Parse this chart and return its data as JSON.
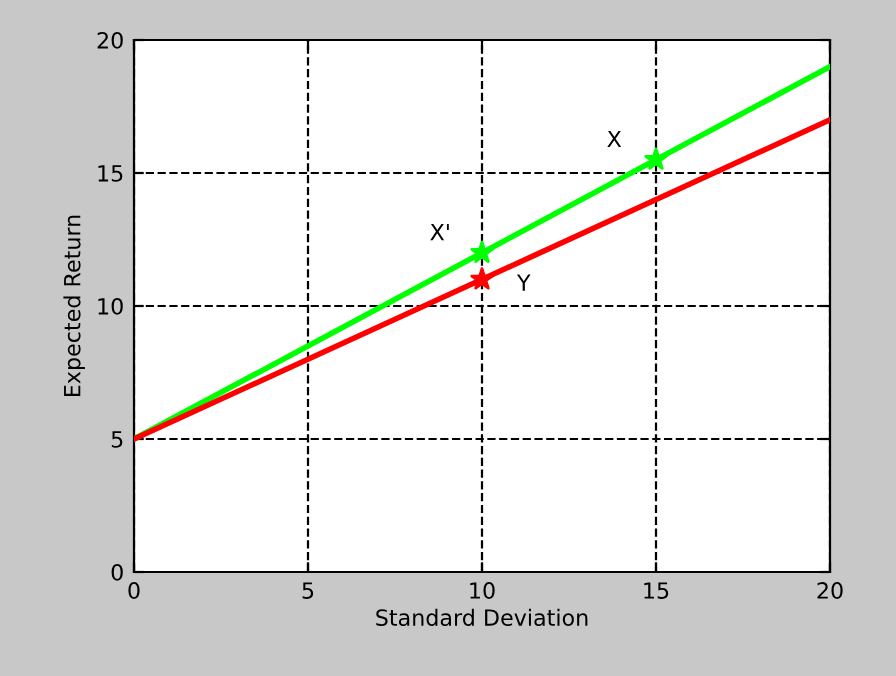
{
  "chart_data": {
    "type": "line",
    "xlabel": "Standard Deviation",
    "ylabel": "Expected Return",
    "series": [
      {
        "color": "#00ff00",
        "x": [
          0,
          20
        ],
        "values": [
          5,
          19
        ]
      },
      {
        "color": "#ff0000",
        "x": [
          0,
          20
        ],
        "values": [
          5,
          17
        ]
      },
      {
        "type": "scatter",
        "color": "#00ff00",
        "x": [
          10,
          15
        ],
        "values": [
          12,
          15.5
        ],
        "marker": "star"
      },
      {
        "type": "scatter",
        "color": "#ff0000",
        "x": [
          10
        ],
        "values": [
          11
        ],
        "marker": "star"
      }
    ],
    "annotations": [
      "X'",
      "X",
      "Y"
    ],
    "xlim": [
      0,
      20
    ],
    "ylim": [
      0,
      20
    ],
    "xticks": [
      0,
      5,
      10,
      15,
      20
    ],
    "yticks": [
      0,
      5,
      10,
      15,
      20
    ],
    "grid": true,
    "line_style": "solid"
  }
}
